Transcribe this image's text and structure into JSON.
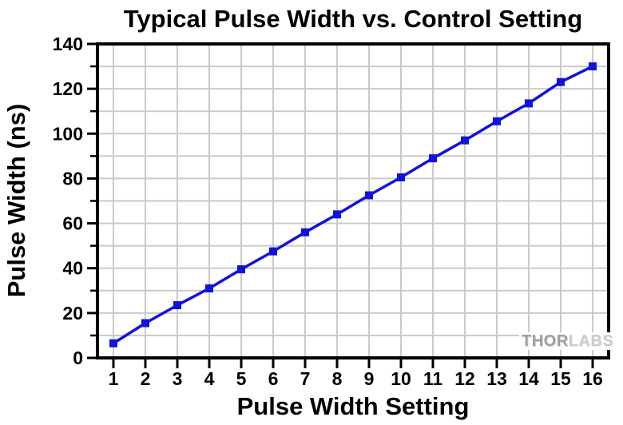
{
  "chart_data": {
    "type": "line",
    "title": "Typical Pulse Width vs. Control Setting",
    "xlabel": "Pulse Width Setting",
    "ylabel": "Pulse Width (ns)",
    "x": [
      1,
      2,
      3,
      4,
      5,
      6,
      7,
      8,
      9,
      10,
      11,
      12,
      13,
      14,
      15,
      16
    ],
    "y": [
      6.5,
      15.5,
      23.5,
      31,
      39.5,
      47.5,
      56,
      64,
      72.5,
      80.5,
      89,
      97,
      105.5,
      113.5,
      123,
      130
    ],
    "xlim": [
      0.5,
      16.5
    ],
    "ylim": [
      0,
      140
    ],
    "x_ticks": [
      1,
      2,
      3,
      4,
      5,
      6,
      7,
      8,
      9,
      10,
      11,
      12,
      13,
      14,
      15,
      16
    ],
    "y_major_ticks": [
      0,
      20,
      40,
      60,
      80,
      100,
      120,
      140
    ],
    "y_minor_ticks": [
      10,
      30,
      50,
      70,
      90,
      110,
      130
    ],
    "x_gridlines": [
      1,
      2,
      3,
      4,
      5,
      6,
      7,
      8,
      9,
      10,
      11,
      12,
      13,
      14,
      15,
      16
    ],
    "y_gridlines": [
      10,
      20,
      30,
      40,
      50,
      60,
      70,
      80,
      90,
      100,
      110,
      120,
      130
    ],
    "grid": true,
    "legend_position": "none",
    "marker": "square",
    "line_color": "#1111dd",
    "grid_color": "#cacaca",
    "axis_color": "#000000",
    "tick_label_color": "#000000"
  },
  "watermark": {
    "part1": "THOR",
    "part2": "LABS"
  }
}
